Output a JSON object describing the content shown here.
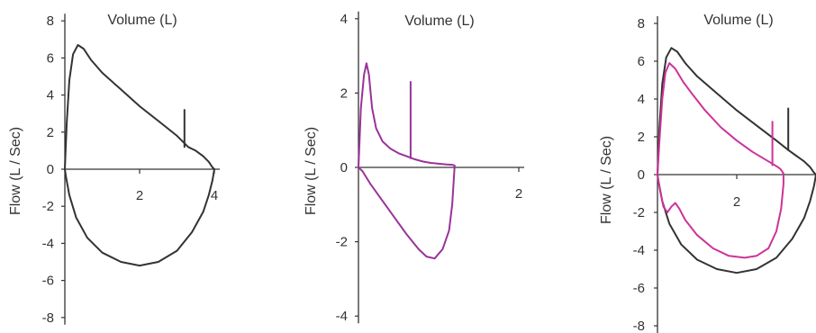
{
  "chart_data": [
    {
      "type": "line",
      "xlabel": "Volume (L)",
      "ylabel": "Flow (L / Sec)",
      "xlim": [
        0,
        4
      ],
      "ylim": [
        -8,
        8
      ],
      "x_ticks": [
        "2",
        "4"
      ],
      "y_ticks": [
        "8",
        "6",
        "4",
        "2",
        "0",
        "-2",
        "-4",
        "-6",
        "-8"
      ],
      "colors": {
        "axis": "#333333",
        "loop": "#333333"
      },
      "series": [
        {
          "color": "#333333",
          "x": [
            0,
            0.05,
            0.12,
            0.22,
            0.35,
            0.5,
            0.7,
            1.0,
            1.5,
            2.0,
            2.5,
            3.0,
            3.2,
            3.3,
            3.5,
            3.7,
            3.85,
            3.95,
            4.0,
            3.95,
            3.85,
            3.7,
            3.4,
            3.0,
            2.5,
            2.0,
            1.5,
            1.0,
            0.6,
            0.3,
            0.12,
            0.03,
            0
          ],
          "y": [
            0,
            2.5,
            4.8,
            6.2,
            6.7,
            6.5,
            5.9,
            5.2,
            4.3,
            3.4,
            2.6,
            1.8,
            1.4,
            1.2,
            1.0,
            0.7,
            0.4,
            0.1,
            0,
            -0.6,
            -1.4,
            -2.3,
            -3.4,
            -4.4,
            -5.0,
            -5.2,
            -5.0,
            -4.5,
            -3.7,
            -2.6,
            -1.4,
            -0.4,
            0
          ]
        },
        {
          "color": "#333333",
          "x": [
            3.2,
            3.2
          ],
          "y": [
            1.2,
            3.2
          ]
        }
      ]
    },
    {
      "type": "line",
      "xlabel": "Volume (L)",
      "ylabel": "Flow (L / Sec)",
      "xlim": [
        0,
        2
      ],
      "ylim": [
        -4,
        4
      ],
      "x_ticks": [
        "2"
      ],
      "y_ticks": [
        "4",
        "2",
        "0",
        "-2",
        "-4"
      ],
      "colors": {
        "axis": "#333333",
        "loop": "#993399"
      },
      "series": [
        {
          "color": "#993399",
          "x": [
            0,
            0.03,
            0.07,
            0.1,
            0.13,
            0.17,
            0.22,
            0.3,
            0.4,
            0.5,
            0.6,
            0.7,
            0.8,
            0.9,
            1.0,
            1.1,
            1.17,
            1.2,
            1.19,
            1.17,
            1.13,
            1.05,
            0.95,
            0.85,
            0.75,
            0.6,
            0.45,
            0.3,
            0.15,
            0.05,
            0
          ],
          "y": [
            0,
            1.6,
            2.5,
            2.8,
            2.5,
            1.6,
            1.05,
            0.7,
            0.5,
            0.38,
            0.3,
            0.22,
            0.16,
            0.12,
            0.1,
            0.08,
            0.07,
            0.05,
            -0.3,
            -1.0,
            -1.7,
            -2.2,
            -2.45,
            -2.4,
            -2.2,
            -1.8,
            -1.35,
            -0.9,
            -0.45,
            -0.1,
            0
          ]
        },
        {
          "color": "#993399",
          "x": [
            0.65,
            0.65
          ],
          "y": [
            0.25,
            2.3
          ]
        }
      ]
    },
    {
      "type": "line",
      "xlabel": "Volume (L)",
      "ylabel": "Flow (L / Sec)",
      "xlim": [
        0,
        4
      ],
      "ylim": [
        -8,
        8
      ],
      "x_ticks": [
        "2"
      ],
      "y_ticks": [
        "8",
        "6",
        "4",
        "2",
        "0",
        "-2",
        "-4",
        "-6",
        "-8"
      ],
      "colors": {
        "axis": "#333333",
        "outer_loop": "#333333",
        "inner_loop": "#cc3399"
      },
      "series": [
        {
          "color": "#333333",
          "x": [
            0,
            0.05,
            0.12,
            0.22,
            0.35,
            0.5,
            0.7,
            1.0,
            1.5,
            2.0,
            2.5,
            3.0,
            3.3,
            3.5,
            3.7,
            3.85,
            3.95,
            4.0,
            3.95,
            3.85,
            3.7,
            3.4,
            3.0,
            2.5,
            2.0,
            1.5,
            1.0,
            0.6,
            0.3,
            0.12,
            0.03,
            0
          ],
          "y": [
            0,
            2.5,
            4.8,
            6.2,
            6.7,
            6.5,
            5.9,
            5.2,
            4.3,
            3.4,
            2.6,
            1.8,
            1.3,
            1.0,
            0.7,
            0.4,
            0.1,
            0,
            -0.6,
            -1.4,
            -2.3,
            -3.4,
            -4.4,
            -5.0,
            -5.2,
            -5.0,
            -4.5,
            -3.7,
            -2.6,
            -1.4,
            -0.4,
            0
          ]
        },
        {
          "color": "#333333",
          "x": [
            3.3,
            3.3
          ],
          "y": [
            1.3,
            3.5
          ]
        },
        {
          "color": "#cc3399",
          "x": [
            0,
            0.05,
            0.12,
            0.2,
            0.3,
            0.45,
            0.65,
            0.9,
            1.2,
            1.6,
            2.0,
            2.4,
            2.8,
            3.0,
            3.1,
            3.15,
            3.18,
            3.18,
            3.12,
            3.0,
            2.8,
            2.5,
            2.2,
            1.8,
            1.4,
            1.0,
            0.7,
            0.55,
            0.45,
            0.35,
            0.25,
            0.15,
            0.07,
            0
          ],
          "y": [
            0,
            1.8,
            4.0,
            5.4,
            5.9,
            5.6,
            4.9,
            4.2,
            3.4,
            2.5,
            1.8,
            1.2,
            0.7,
            0.45,
            0.3,
            0.15,
            0.05,
            -0.5,
            -1.8,
            -3.0,
            -3.9,
            -4.3,
            -4.4,
            -4.3,
            -3.9,
            -3.2,
            -2.4,
            -1.8,
            -1.5,
            -1.7,
            -2.0,
            -1.7,
            -0.9,
            0
          ]
        },
        {
          "color": "#cc3399",
          "x": [
            2.9,
            2.9
          ],
          "y": [
            0.5,
            2.8
          ]
        }
      ]
    }
  ]
}
